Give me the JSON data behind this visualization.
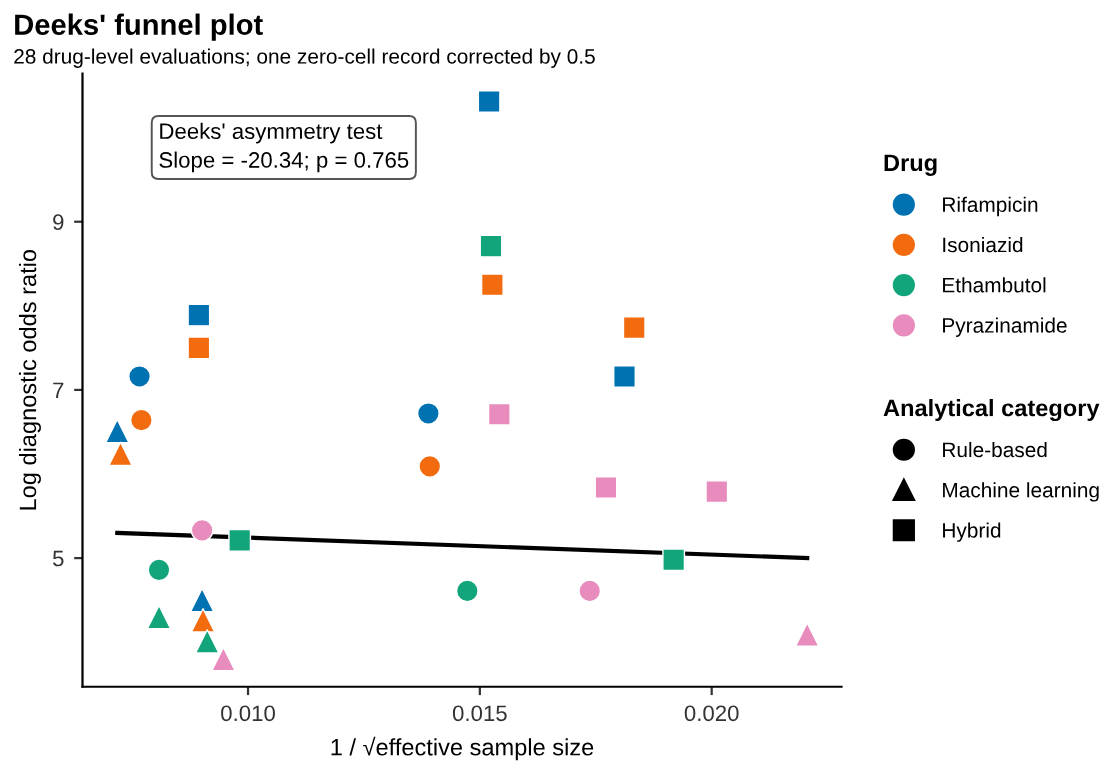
{
  "chart_data": {
    "type": "scatter",
    "title": "Deeks' funnel plot",
    "subtitle": "28 drug-level evaluations; one zero-cell record corrected by 0.5",
    "xlabel": "1 / √effective sample size",
    "ylabel": "Log diagnostic odds ratio",
    "annotations": [
      "Deeks' asymmetry test\nSlope = -20.34; p = 0.765",
      "Analytical category"
    ],
    "legend": "right",
    "legend_title": "Drug",
    "xlim": [
      0.00643,
      0.0228
    ],
    "ylim": [
      3.47,
      10.76
    ],
    "xticks": [
      {
        "value": 0.01,
        "label": "0.010"
      },
      {
        "value": 0.015,
        "label": "0.015"
      },
      {
        "value": 0.02,
        "label": "0.020"
      }
    ],
    "yticks": [
      5,
      7,
      9
    ],
    "grid": false,
    "series": [
      {
        "color": "#0072b2",
        "marker": "circle",
        "x": [
          0.00766,
          0.01389
        ],
        "values": [
          7.16,
          6.72
        ]
      },
      {
        "color": "#0072b2",
        "marker": "triangle",
        "x": [
          0.00718,
          0.00901
        ],
        "values": [
          6.51,
          4.5
        ]
      },
      {
        "color": "#0072b2",
        "marker": "square",
        "x": [
          0.0152,
          0.00894,
          0.01812
        ],
        "values": [
          10.43,
          7.89,
          7.16
        ]
      },
      {
        "color": "#f26b0f",
        "marker": "circle",
        "x": [
          0.0077,
          0.01392
        ],
        "values": [
          6.64,
          6.09
        ]
      },
      {
        "color": "#f26b0f",
        "marker": "triangle",
        "x": [
          0.00725,
          0.00903
        ],
        "values": [
          6.24,
          4.26
        ]
      },
      {
        "color": "#f26b0f",
        "marker": "square",
        "x": [
          0.01527,
          0.00894,
          0.01833
        ],
        "values": [
          8.25,
          7.5,
          7.74
        ]
      },
      {
        "color": "#12a57c",
        "marker": "circle",
        "x": [
          0.00808,
          0.01473
        ],
        "values": [
          4.86,
          4.61
        ]
      },
      {
        "color": "#12a57c",
        "marker": "triangle",
        "x": [
          0.00808,
          0.00912
        ],
        "values": [
          4.3,
          4.01
        ]
      },
      {
        "color": "#12a57c",
        "marker": "square",
        "x": [
          0.00982,
          0.01524,
          0.01918
        ],
        "values": [
          5.21,
          8.71,
          4.98
        ]
      },
      {
        "color": "#e88bbd",
        "marker": "circle",
        "x": [
          0.00901,
          0.01737
        ],
        "values": [
          5.33,
          4.61
        ]
      },
      {
        "color": "#e88bbd",
        "marker": "triangle",
        "x": [
          0.00947,
          0.02206
        ],
        "values": [
          3.8,
          4.09
        ]
      },
      {
        "color": "#e88bbd",
        "marker": "square",
        "x": [
          0.01542,
          0.01772,
          0.02011
        ],
        "values": [
          6.71,
          5.84,
          5.79
        ]
      },
      {
        "type": "line",
        "color": "#000000",
        "x": [
          0.00718,
          0.02206
        ],
        "values": [
          5.3,
          5.0
        ],
        "marker": "none",
        "line_style": "solid"
      },
      {
        "name": "Rifampicin",
        "color": "#0072b2",
        "marker": "circle"
      },
      {
        "name": "Isoniazid",
        "color": "#f26b0f",
        "marker": "circle"
      },
      {
        "name": "Ethambutol",
        "color": "#12a57c",
        "marker": "circle"
      },
      {
        "name": "Pyrazinamide",
        "color": "#e88bbd",
        "marker": "circle"
      },
      {
        "name": "Rule-based",
        "color": "#000000",
        "marker": "circle"
      },
      {
        "name": "Machine learning",
        "color": "#000000",
        "marker": "triangle"
      },
      {
        "name": "Hybrid",
        "color": "#000000",
        "marker": "square"
      }
    ]
  }
}
